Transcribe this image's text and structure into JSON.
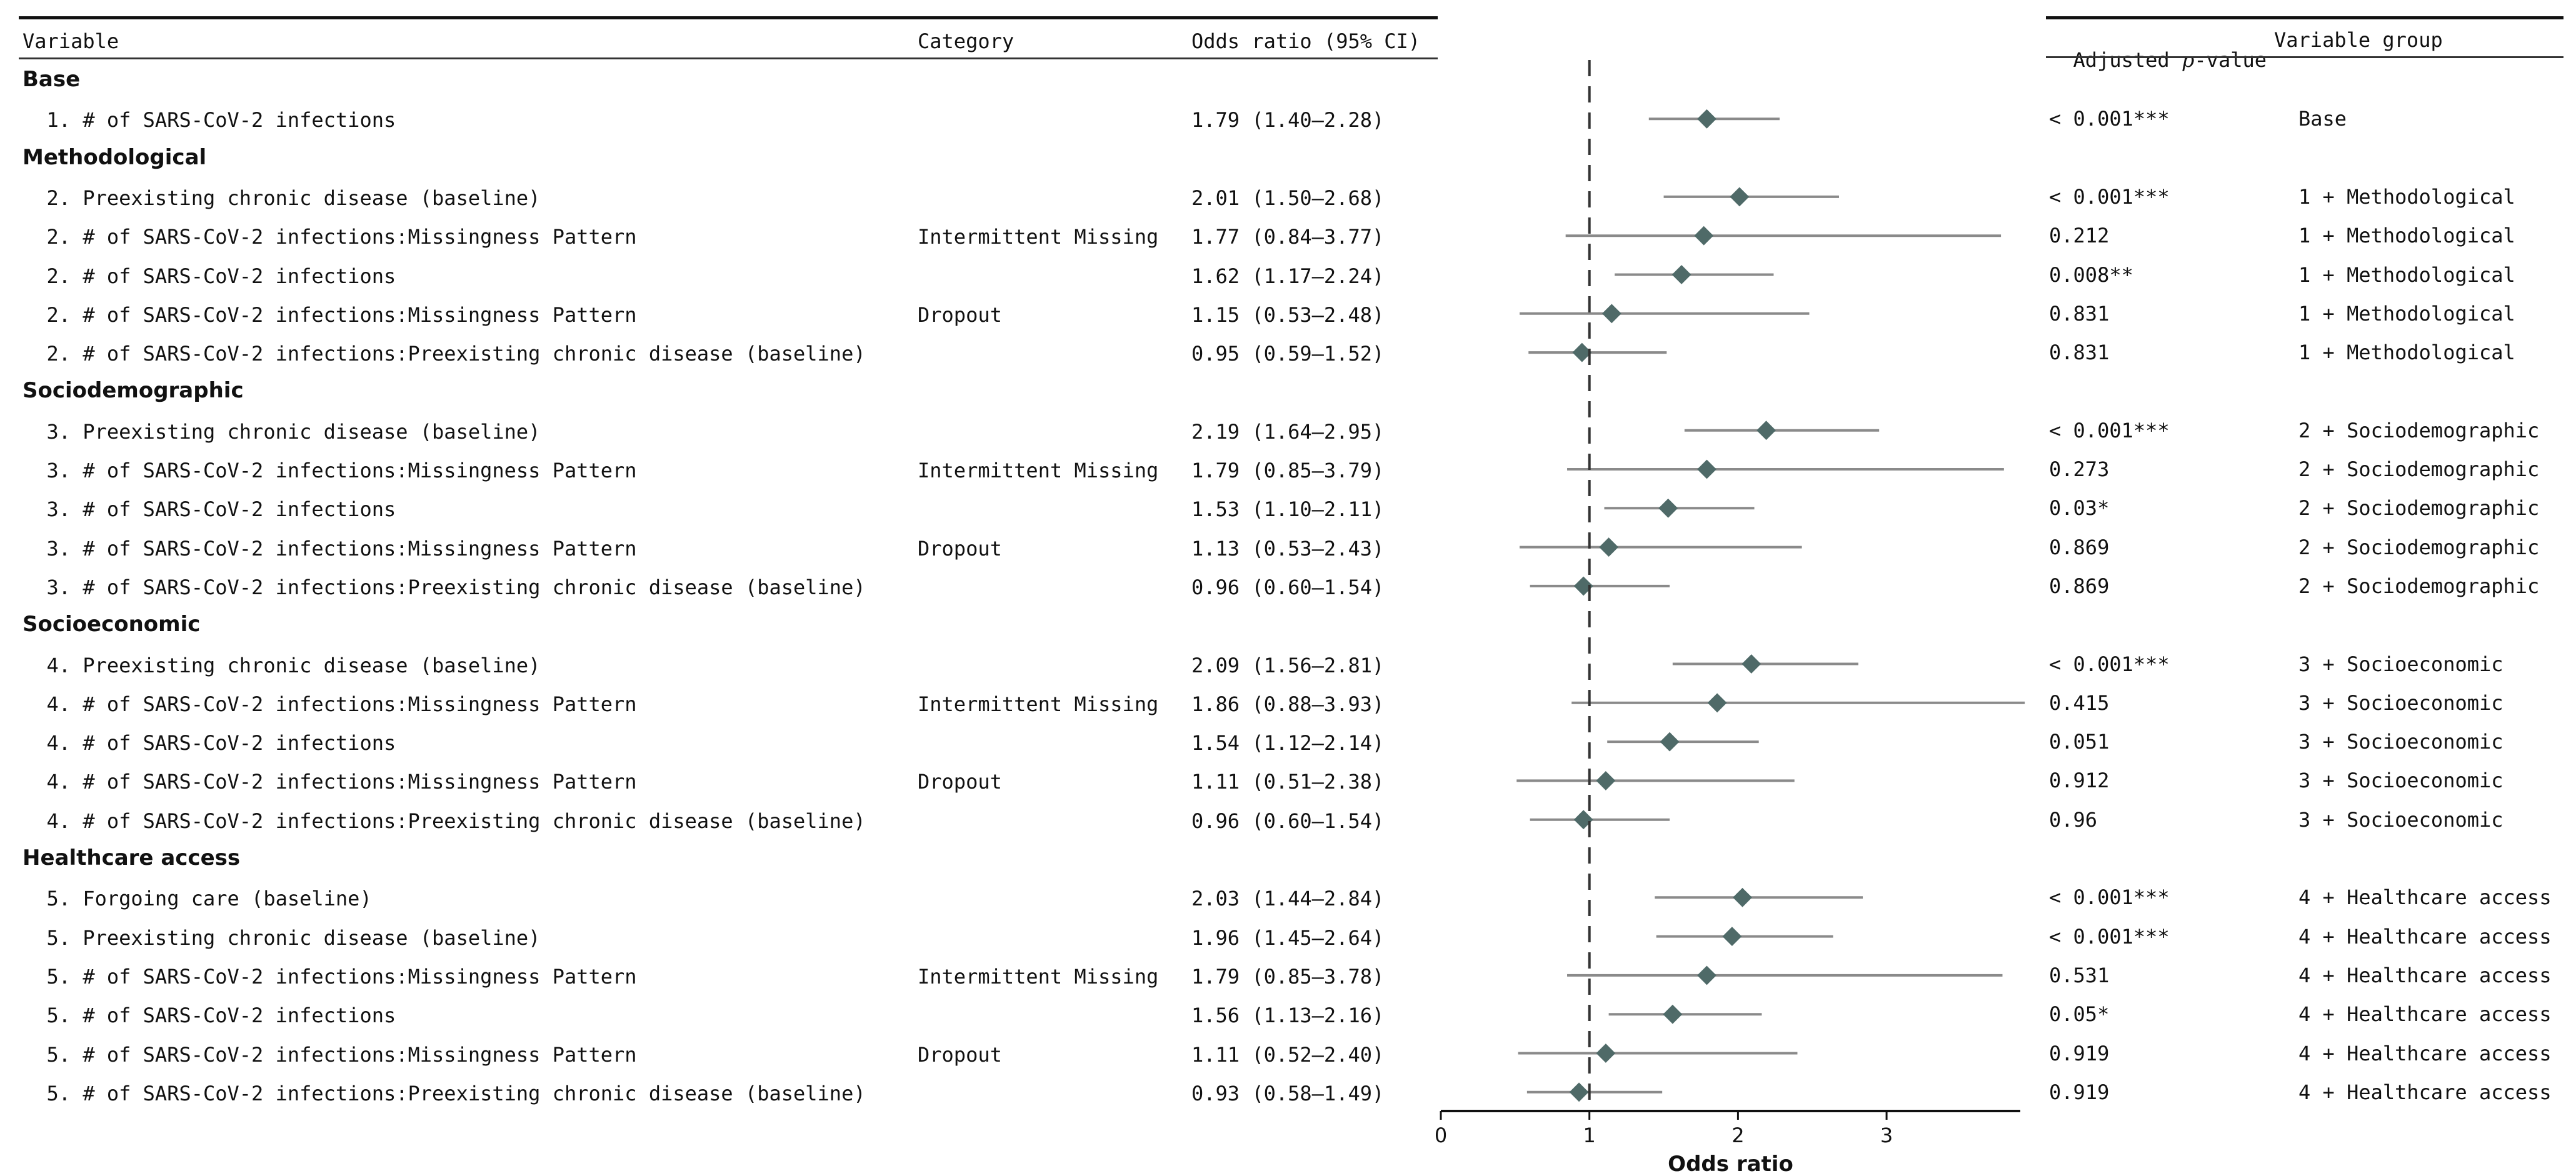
{
  "colors": {
    "marker": "#4f6a68",
    "ci_line": "#8a8a8a",
    "text": "#111111"
  },
  "headers": {
    "variable": "Variable",
    "category": "Category",
    "or_ci": "Odds ratio (95% CI)",
    "pvalue_prefix": "Adjusted ",
    "pvalue_p": "p",
    "pvalue_suffix": "-value",
    "group": "Variable group"
  },
  "chart_data": {
    "type": "forest",
    "xlabel": "Odds ratio",
    "xlim": [
      0,
      3.9
    ],
    "xticks": [
      0,
      1,
      2,
      3
    ],
    "reference_line": 1,
    "rows": [
      {
        "kind": "section",
        "label": "Base"
      },
      {
        "kind": "estimate",
        "label": "1. # of SARS-CoV-2 infections",
        "category": "",
        "or_text": "1.79 (1.40–2.28)",
        "est": 1.79,
        "lo": 1.4,
        "hi": 2.28,
        "pvalue": "< 0.001***",
        "group": "Base"
      },
      {
        "kind": "section",
        "label": "Methodological"
      },
      {
        "kind": "estimate",
        "label": "2. Preexisting chronic disease (baseline)",
        "category": "",
        "or_text": "2.01 (1.50–2.68)",
        "est": 2.01,
        "lo": 1.5,
        "hi": 2.68,
        "pvalue": "< 0.001***",
        "group": "1 + Methodological"
      },
      {
        "kind": "estimate",
        "label": "2. # of SARS-CoV-2 infections:Missingness Pattern",
        "category": "Intermittent Missing",
        "or_text": "1.77 (0.84–3.77)",
        "est": 1.77,
        "lo": 0.84,
        "hi": 3.77,
        "pvalue": "0.212",
        "group": "1 + Methodological"
      },
      {
        "kind": "estimate",
        "label": "2. # of SARS-CoV-2 infections",
        "category": "",
        "or_text": "1.62 (1.17–2.24)",
        "est": 1.62,
        "lo": 1.17,
        "hi": 2.24,
        "pvalue": "0.008**",
        "group": "1 + Methodological"
      },
      {
        "kind": "estimate",
        "label": "2. # of SARS-CoV-2 infections:Missingness Pattern",
        "category": "Dropout",
        "or_text": "1.15 (0.53–2.48)",
        "est": 1.15,
        "lo": 0.53,
        "hi": 2.48,
        "pvalue": "0.831",
        "group": "1 + Methodological"
      },
      {
        "kind": "estimate",
        "label": "2. # of SARS-CoV-2 infections:Preexisting chronic disease (baseline)",
        "category": "",
        "or_text": "0.95 (0.59–1.52)",
        "est": 0.95,
        "lo": 0.59,
        "hi": 1.52,
        "pvalue": "0.831",
        "group": "1 + Methodological"
      },
      {
        "kind": "section",
        "label": "Sociodemographic"
      },
      {
        "kind": "estimate",
        "label": "3. Preexisting chronic disease (baseline)",
        "category": "",
        "or_text": "2.19 (1.64–2.95)",
        "est": 2.19,
        "lo": 1.64,
        "hi": 2.95,
        "pvalue": "< 0.001***",
        "group": "2 + Sociodemographic"
      },
      {
        "kind": "estimate",
        "label": "3. # of SARS-CoV-2 infections:Missingness Pattern",
        "category": "Intermittent Missing",
        "or_text": "1.79 (0.85–3.79)",
        "est": 1.79,
        "lo": 0.85,
        "hi": 3.79,
        "pvalue": "0.273",
        "group": "2 + Sociodemographic"
      },
      {
        "kind": "estimate",
        "label": "3. # of SARS-CoV-2 infections",
        "category": "",
        "or_text": "1.53 (1.10–2.11)",
        "est": 1.53,
        "lo": 1.1,
        "hi": 2.11,
        "pvalue": "0.03*",
        "group": "2 + Sociodemographic"
      },
      {
        "kind": "estimate",
        "label": "3. # of SARS-CoV-2 infections:Missingness Pattern",
        "category": "Dropout",
        "or_text": "1.13 (0.53–2.43)",
        "est": 1.13,
        "lo": 0.53,
        "hi": 2.43,
        "pvalue": "0.869",
        "group": "2 + Sociodemographic"
      },
      {
        "kind": "estimate",
        "label": "3. # of SARS-CoV-2 infections:Preexisting chronic disease (baseline)",
        "category": "",
        "or_text": "0.96 (0.60–1.54)",
        "est": 0.96,
        "lo": 0.6,
        "hi": 1.54,
        "pvalue": "0.869",
        "group": "2 + Sociodemographic"
      },
      {
        "kind": "section",
        "label": "Socioeconomic"
      },
      {
        "kind": "estimate",
        "label": "4. Preexisting chronic disease (baseline)",
        "category": "",
        "or_text": "2.09 (1.56–2.81)",
        "est": 2.09,
        "lo": 1.56,
        "hi": 2.81,
        "pvalue": "< 0.001***",
        "group": "3 + Socioeconomic"
      },
      {
        "kind": "estimate",
        "label": "4. # of SARS-CoV-2 infections:Missingness Pattern",
        "category": "Intermittent Missing",
        "or_text": "1.86 (0.88–3.93)",
        "est": 1.86,
        "lo": 0.88,
        "hi": 3.93,
        "pvalue": "0.415",
        "group": "3 + Socioeconomic"
      },
      {
        "kind": "estimate",
        "label": "4. # of SARS-CoV-2 infections",
        "category": "",
        "or_text": "1.54 (1.12–2.14)",
        "est": 1.54,
        "lo": 1.12,
        "hi": 2.14,
        "pvalue": "0.051",
        "group": "3 + Socioeconomic"
      },
      {
        "kind": "estimate",
        "label": "4. # of SARS-CoV-2 infections:Missingness Pattern",
        "category": "Dropout",
        "or_text": "1.11 (0.51–2.38)",
        "est": 1.11,
        "lo": 0.51,
        "hi": 2.38,
        "pvalue": "0.912",
        "group": "3 + Socioeconomic"
      },
      {
        "kind": "estimate",
        "label": "4. # of SARS-CoV-2 infections:Preexisting chronic disease (baseline)",
        "category": "",
        "or_text": "0.96 (0.60–1.54)",
        "est": 0.96,
        "lo": 0.6,
        "hi": 1.54,
        "pvalue": "0.96",
        "group": "3 + Socioeconomic"
      },
      {
        "kind": "section",
        "label": "Healthcare access"
      },
      {
        "kind": "estimate",
        "label": "5. Forgoing care (baseline)",
        "category": "",
        "or_text": "2.03 (1.44–2.84)",
        "est": 2.03,
        "lo": 1.44,
        "hi": 2.84,
        "pvalue": "< 0.001***",
        "group": "4 + Healthcare access"
      },
      {
        "kind": "estimate",
        "label": "5. Preexisting chronic disease (baseline)",
        "category": "",
        "or_text": "1.96 (1.45–2.64)",
        "est": 1.96,
        "lo": 1.45,
        "hi": 2.64,
        "pvalue": "< 0.001***",
        "group": "4 + Healthcare access"
      },
      {
        "kind": "estimate",
        "label": "5. # of SARS-CoV-2 infections:Missingness Pattern",
        "category": "Intermittent Missing",
        "or_text": "1.79 (0.85–3.78)",
        "est": 1.79,
        "lo": 0.85,
        "hi": 3.78,
        "pvalue": "0.531",
        "group": "4 + Healthcare access"
      },
      {
        "kind": "estimate",
        "label": "5. # of SARS-CoV-2 infections",
        "category": "",
        "or_text": "1.56 (1.13–2.16)",
        "est": 1.56,
        "lo": 1.13,
        "hi": 2.16,
        "pvalue": "0.05*",
        "group": "4 + Healthcare access"
      },
      {
        "kind": "estimate",
        "label": "5. # of SARS-CoV-2 infections:Missingness Pattern",
        "category": "Dropout",
        "or_text": "1.11 (0.52–2.40)",
        "est": 1.11,
        "lo": 0.52,
        "hi": 2.4,
        "pvalue": "0.919",
        "group": "4 + Healthcare access"
      },
      {
        "kind": "estimate",
        "label": "5. # of SARS-CoV-2 infections:Preexisting chronic disease (baseline)",
        "category": "",
        "or_text": "0.93 (0.58–1.49)",
        "est": 0.93,
        "lo": 0.58,
        "hi": 1.49,
        "pvalue": "0.919",
        "group": "4 + Healthcare access"
      }
    ]
  }
}
